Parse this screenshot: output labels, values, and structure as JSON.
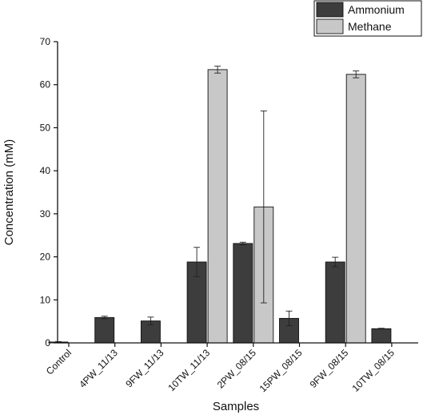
{
  "chart_data": {
    "type": "bar",
    "xlabel": "Samples",
    "ylabel": "Concentration (mM)",
    "ylim": [
      0,
      70
    ],
    "yticks": [
      0,
      10,
      20,
      30,
      40,
      50,
      60,
      70
    ],
    "grid": false,
    "legend_position": "top-right",
    "categories": [
      "Control",
      "4PW_11/13",
      "9FW_11/13",
      "10TW_11/13",
      "2PW_08/15",
      "15PW_08/15",
      "9FW_08/15",
      "10TW_08/15"
    ],
    "series": [
      {
        "name": "Ammonium",
        "color": "#3d3d3d",
        "values": [
          0.2,
          5.9,
          5.1,
          18.8,
          23.1,
          5.7,
          18.8,
          3.3
        ],
        "errors": [
          0.1,
          0.3,
          0.9,
          3.4,
          0.3,
          1.7,
          1.1,
          0.1
        ]
      },
      {
        "name": "Methane",
        "color": "#c8c8c8",
        "values": [
          null,
          null,
          null,
          63.5,
          31.6,
          null,
          62.4,
          null
        ],
        "errors": [
          null,
          null,
          null,
          0.8,
          22.3,
          null,
          0.8,
          null
        ]
      }
    ]
  }
}
